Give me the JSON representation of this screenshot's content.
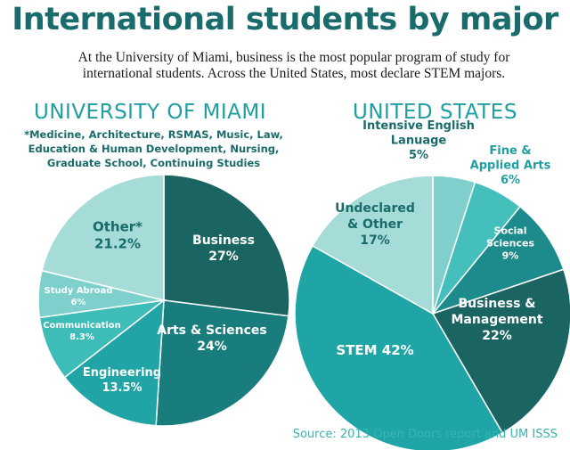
{
  "header": {
    "title": "International students by major",
    "subtitle_line1": "At the University of Miami, business is the most popular program of study for",
    "subtitle_line2": "international students. Across the United States, most declare STEM majors."
  },
  "footnote": {
    "lines": [
      "*Medicine, Architecture, RSMAS, Music, Law,",
      "Education & Human Development, Nursing,",
      "Graduate School, Continuing Studies"
    ]
  },
  "source": "Source: 2013 Open Doors report and UM ISSS",
  "colors": {
    "title": "#1a6b6b",
    "chart_title": "#1f9fa0",
    "source": "#38b3b1"
  },
  "chart_data": [
    {
      "type": "pie",
      "title": "UNIVERSITY OF MIAMI",
      "slices": [
        {
          "label": [
            "Business"
          ],
          "value_label": "27%",
          "value": 27,
          "color": "#1a6462",
          "text_color": "#ffffff"
        },
        {
          "label": [
            "Arts & Sciences"
          ],
          "value_label": "24%",
          "value": 24,
          "color": "#197d7e",
          "text_color": "#ffffff"
        },
        {
          "label": [
            "Engineering"
          ],
          "value_label": "13.5%",
          "value": 13.5,
          "color": "#21a4a5",
          "text_color": "#ffffff"
        },
        {
          "label": [
            "Communication"
          ],
          "value_label": "8.3%",
          "value": 8.3,
          "color": "#3ebcb8",
          "text_color": "#ffffff"
        },
        {
          "label": [
            "Study Abroad"
          ],
          "value_label": "6%",
          "value": 6,
          "color": "#7dd0cc",
          "text_color": "#ffffff"
        },
        {
          "label": [
            "Other*"
          ],
          "value_label": "21.2%",
          "value": 21.2,
          "color": "#a6dcd8",
          "text_color": "#1a6b6b"
        }
      ]
    },
    {
      "type": "pie",
      "title": "UNITED STATES",
      "slices": [
        {
          "label": [
            "Intensive English",
            "Lanuage"
          ],
          "value_label": "5%",
          "value": 5,
          "color": "#7fd0cd",
          "text_color": "#1a6b6b"
        },
        {
          "label": [
            "Fine &",
            "Applied Arts"
          ],
          "value_label": "6%",
          "value": 6,
          "color": "#45bfbb",
          "text_color": "#1f9fa0"
        },
        {
          "label": [
            "Social",
            "Sciences"
          ],
          "value_label": "9%",
          "value": 9,
          "color": "#1d8b8c",
          "text_color": "#ffffff"
        },
        {
          "label": [
            "Business &",
            "Management"
          ],
          "value_label": "22%",
          "value": 22,
          "color": "#1a6462",
          "text_color": "#ffffff"
        },
        {
          "label": [
            "STEM 42%"
          ],
          "value_label": "",
          "value": 42,
          "color": "#20a5a6",
          "text_color": "#ffffff"
        },
        {
          "label": [
            "Undeclared",
            "& Other"
          ],
          "value_label": "17%",
          "value": 17,
          "color": "#a6dcd8",
          "text_color": "#1a6b6b"
        }
      ]
    }
  ]
}
